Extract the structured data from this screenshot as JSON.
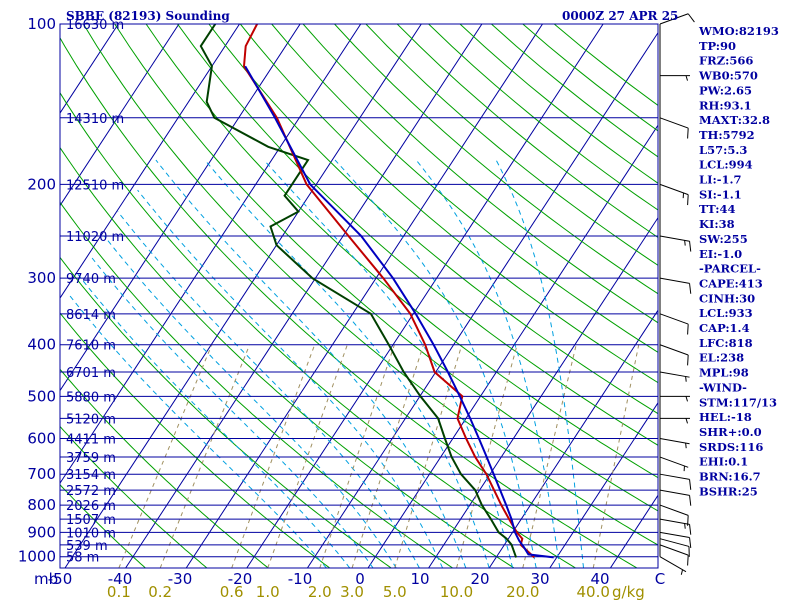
{
  "header": {
    "station": "SBBE (82193) Sounding",
    "time": "0000Z 27 APR 25"
  },
  "chart_data": {
    "type": "skew-t",
    "p_axis_label": "mb",
    "wind_axis_label": "g/kg",
    "pressure_levels": [
      100,
      200,
      300,
      400,
      500,
      600,
      700,
      800,
      900,
      1000
    ],
    "height_levels": [
      {
        "p": 100,
        "h": "16630 m"
      },
      {
        "p": 150,
        "h": "14310 m"
      },
      {
        "p": 200,
        "h": "12510 m"
      },
      {
        "p": 250,
        "h": "11020 m"
      },
      {
        "p": 300,
        "h": "9740 m"
      },
      {
        "p": 350,
        "h": "8614 m"
      },
      {
        "p": 400,
        "h": "7610 m"
      },
      {
        "p": 450,
        "h": "6701 m"
      },
      {
        "p": 500,
        "h": "5880 m"
      },
      {
        "p": 550,
        "h": "5120 m"
      },
      {
        "p": 600,
        "h": "4411 m"
      },
      {
        "p": 650,
        "h": "3759 m"
      },
      {
        "p": 700,
        "h": "3154 m"
      },
      {
        "p": 750,
        "h": "2572 m"
      },
      {
        "p": 800,
        "h": "2026 m"
      },
      {
        "p": 850,
        "h": "1507 m"
      },
      {
        "p": 900,
        "h": "1010 m"
      },
      {
        "p": 950,
        "h": "539 m"
      },
      {
        "p": 1000,
        "h": "58 m"
      }
    ],
    "temperature_ticks": [
      "-50",
      "-40",
      "-30",
      "-20",
      "-10",
      "0",
      "10",
      "20",
      "30",
      "40",
      "C"
    ],
    "mixing_ratio_ticks": [
      "0.1",
      "0.2",
      "0.6",
      "1.0",
      "2.0",
      "3.0",
      "5.0",
      "10.0",
      "20.0",
      "40.0"
    ],
    "temperature_profile": [
      [
        1003,
        26.3
      ],
      [
        950,
        22.7
      ],
      [
        925,
        22.3
      ],
      [
        900,
        20.7
      ],
      [
        850,
        18.0
      ],
      [
        800,
        15.2
      ],
      [
        750,
        12.4
      ],
      [
        700,
        9.4
      ],
      [
        650,
        5.7
      ],
      [
        600,
        2.2
      ],
      [
        550,
        -1.4
      ],
      [
        500,
        -3.0
      ],
      [
        450,
        -10.2
      ],
      [
        400,
        -14.7
      ],
      [
        350,
        -20.5
      ],
      [
        300,
        -28.8
      ],
      [
        250,
        -39.1
      ],
      [
        200,
        -51.6
      ],
      [
        150,
        -63.7
      ],
      [
        120,
        -74.7
      ],
      [
        110,
        -76.6
      ],
      [
        100,
        -77.1
      ],
      [
        95,
        -75.0
      ],
      [
        92,
        -72.0
      ]
    ],
    "dewpoint_profile": [
      [
        1003,
        23.3
      ],
      [
        950,
        21.2
      ],
      [
        925,
        19.7
      ],
      [
        900,
        17.7
      ],
      [
        850,
        15.0
      ],
      [
        800,
        12.0
      ],
      [
        750,
        9.3
      ],
      [
        700,
        5.2
      ],
      [
        650,
        1.8
      ],
      [
        600,
        -1.3
      ],
      [
        550,
        -4.6
      ],
      [
        500,
        -9.9
      ],
      [
        450,
        -15.3
      ],
      [
        400,
        -20.7
      ],
      [
        350,
        -27.0
      ],
      [
        300,
        -40.5
      ],
      [
        260,
        -50.0
      ],
      [
        240,
        -53.0
      ],
      [
        225,
        -50.0
      ],
      [
        210,
        -54.0
      ],
      [
        180,
        -54.0
      ],
      [
        170,
        -62.0
      ],
      [
        150,
        -74.0
      ],
      [
        140,
        -77.0
      ],
      [
        120,
        -80.0
      ],
      [
        110,
        -84.0
      ],
      [
        100,
        -84.0
      ],
      [
        92,
        -84.0
      ]
    ],
    "parcel_profile": [
      [
        1003,
        29.5
      ],
      [
        990,
        25.0
      ],
      [
        960,
        23.5
      ],
      [
        933,
        22.0
      ],
      [
        900,
        20.4
      ],
      [
        850,
        18.4
      ],
      [
        800,
        16.0
      ],
      [
        750,
        13.4
      ],
      [
        700,
        10.6
      ],
      [
        650,
        7.6
      ],
      [
        600,
        4.3
      ],
      [
        550,
        0.7
      ],
      [
        500,
        -3.4
      ],
      [
        450,
        -8.0
      ],
      [
        400,
        -13.3
      ],
      [
        350,
        -19.6
      ],
      [
        300,
        -27.2
      ],
      [
        250,
        -37.0
      ],
      [
        200,
        -51.0
      ],
      [
        150,
        -64.0
      ],
      [
        120,
        -74.5
      ]
    ],
    "indices": [
      "WMO:82193",
      "TP:90",
      "FRZ:566",
      "WB0:570",
      "PW:2.65",
      "RH:93.1",
      "MAXT:32.8",
      "TH:5792",
      "L57:5.3",
      "LCL:994",
      "LI:-1.7",
      "SI:-1.1",
      "TT:44",
      "KI:38",
      "SW:255",
      "EI:-1.0",
      "-PARCEL-",
      "CAPE:413",
      "CINH:30",
      "LCL:933",
      "CAP:1.4",
      "LFC:818",
      "EL:238",
      "MPL:98",
      "-WIND-",
      "STM:117/13",
      "HEL:-18",
      "SHR+:0.0",
      "SRDS:116",
      "EHI:0.1",
      "BRN:16.7",
      "BSHR:25"
    ],
    "wind_profile": [
      [
        1000,
        120,
        5
      ],
      [
        950,
        110,
        10
      ],
      [
        925,
        105,
        10
      ],
      [
        900,
        100,
        10
      ],
      [
        850,
        100,
        15
      ],
      [
        800,
        110,
        10
      ],
      [
        750,
        100,
        10
      ],
      [
        700,
        100,
        10
      ],
      [
        650,
        110,
        5
      ],
      [
        600,
        100,
        5
      ],
      [
        550,
        90,
        5
      ],
      [
        500,
        90,
        5
      ],
      [
        450,
        100,
        5
      ],
      [
        400,
        110,
        10
      ],
      [
        350,
        110,
        10
      ],
      [
        300,
        100,
        10
      ],
      [
        250,
        100,
        15
      ],
      [
        200,
        110,
        15
      ],
      [
        150,
        110,
        10
      ],
      [
        125,
        90,
        5
      ],
      [
        100,
        70,
        10
      ]
    ],
    "colors": {
      "frame": "#0000a0",
      "isotherm": "#0000a0",
      "dry_adiabat": "#00a000",
      "moist_adiabat": "#00a0e0",
      "mixing_ratio": "#a09060",
      "temperature": "#c00000",
      "dewpoint": "#004000",
      "parcel": "#0000c0"
    }
  }
}
